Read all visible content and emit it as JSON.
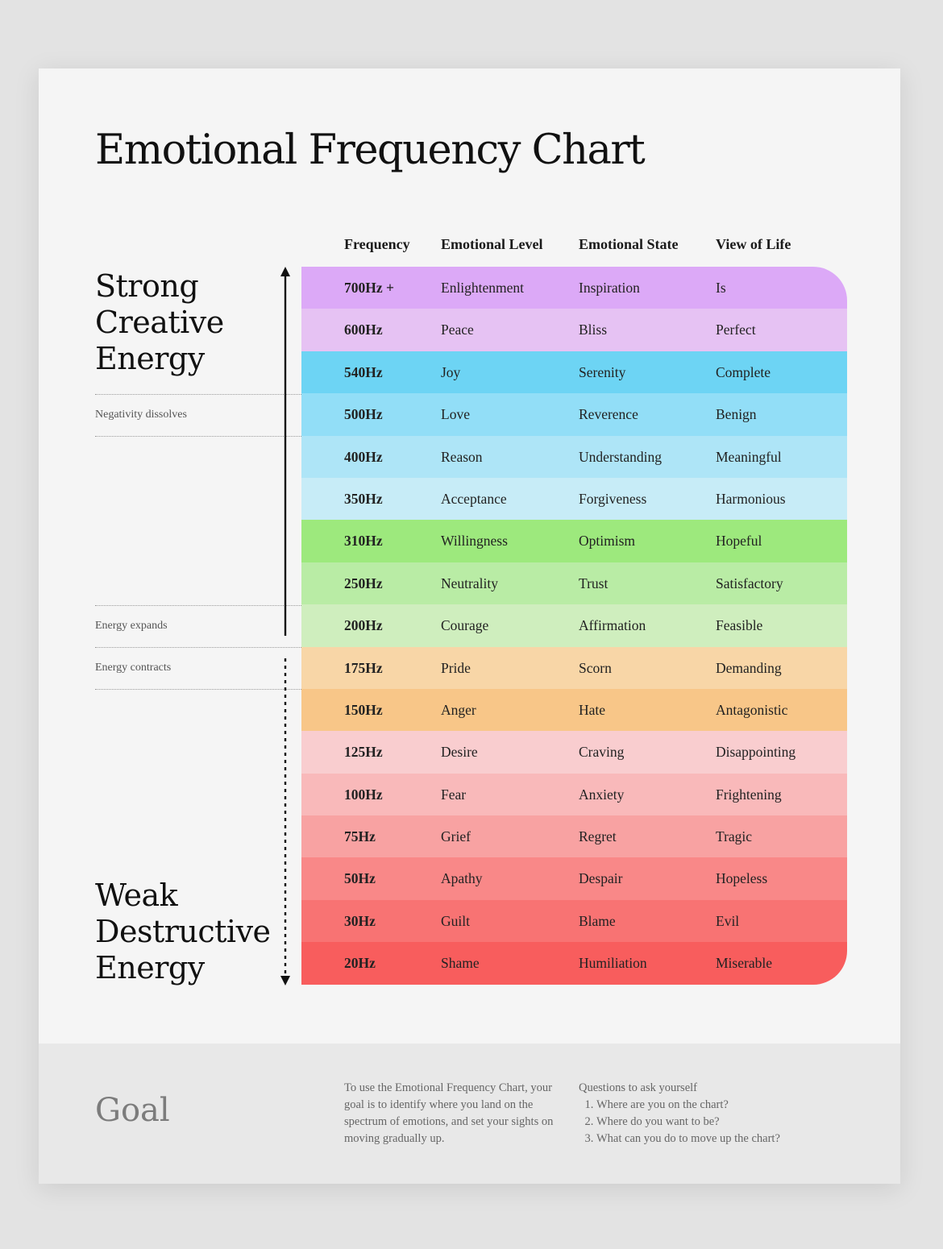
{
  "title": "Emotional Frequency Chart",
  "columns": {
    "frequency": "Frequency",
    "level": "Emotional Level",
    "state": "Emotional State",
    "view": "View of Life"
  },
  "side": {
    "top_label": "Strong\nCreative\nEnergy",
    "bottom_label": "Weak\nDestructive\nEnergy",
    "markers": [
      {
        "label": "Negativity dissolves"
      },
      {
        "label": "Energy expands"
      },
      {
        "label": "Energy contracts"
      }
    ]
  },
  "rows": [
    {
      "freq": "700Hz +",
      "level": "Enlightenment",
      "state": "Inspiration",
      "view": "Is",
      "color": "#dca9f7"
    },
    {
      "freq": "600Hz",
      "level": "Peace",
      "state": "Bliss",
      "view": "Perfect",
      "color": "#e6c2f3"
    },
    {
      "freq": "540Hz",
      "level": "Joy",
      "state": "Serenity",
      "view": "Complete",
      "color": "#6dd4f4"
    },
    {
      "freq": "500Hz",
      "level": "Love",
      "state": "Reverence",
      "view": "Benign",
      "color": "#92def7"
    },
    {
      "freq": "400Hz",
      "level": "Reason",
      "state": "Understanding",
      "view": "Meaningful",
      "color": "#aee5f7"
    },
    {
      "freq": "350Hz",
      "level": "Acceptance",
      "state": "Forgiveness",
      "view": "Harmonious",
      "color": "#c7ecf7"
    },
    {
      "freq": "310Hz",
      "level": "Willingness",
      "state": "Optimism",
      "view": "Hopeful",
      "color": "#9de97d"
    },
    {
      "freq": "250Hz",
      "level": "Neutrality",
      "state": "Trust",
      "view": "Satisfactory",
      "color": "#b9eca5"
    },
    {
      "freq": "200Hz",
      "level": "Courage",
      "state": "Affirmation",
      "view": "Feasible",
      "color": "#cfeebe"
    },
    {
      "freq": "175Hz",
      "level": "Pride",
      "state": "Scorn",
      "view": "Demanding",
      "color": "#f8d6a7"
    },
    {
      "freq": "150Hz",
      "level": "Anger",
      "state": "Hate",
      "view": "Antagonistic",
      "color": "#f8c688"
    },
    {
      "freq": "125Hz",
      "level": "Desire",
      "state": "Craving",
      "view": "Disappointing",
      "color": "#f9cdcf"
    },
    {
      "freq": "100Hz",
      "level": "Fear",
      "state": "Anxiety",
      "view": "Frightening",
      "color": "#f9b9ba"
    },
    {
      "freq": "75Hz",
      "level": "Grief",
      "state": "Regret",
      "view": "Tragic",
      "color": "#f8a2a2"
    },
    {
      "freq": "50Hz",
      "level": "Apathy",
      "state": "Despair",
      "view": "Hopeless",
      "color": "#f98888"
    },
    {
      "freq": "30Hz",
      "level": "Guilt",
      "state": "Blame",
      "view": "Evil",
      "color": "#f87373"
    },
    {
      "freq": "20Hz",
      "level": "Shame",
      "state": "Humiliation",
      "view": "Miserable",
      "color": "#f85d5d"
    }
  ],
  "footer": {
    "goal": "Goal",
    "text": "To use the Emotional Frequency Chart, your goal is to identify where you land on the spectrum of emotions, and set your sights on moving gradually up.",
    "questions_title": "Questions to ask yourself",
    "questions": [
      "Where are you on the chart?",
      "Where do you want to be?",
      "What can you do to move up the chart?"
    ]
  }
}
